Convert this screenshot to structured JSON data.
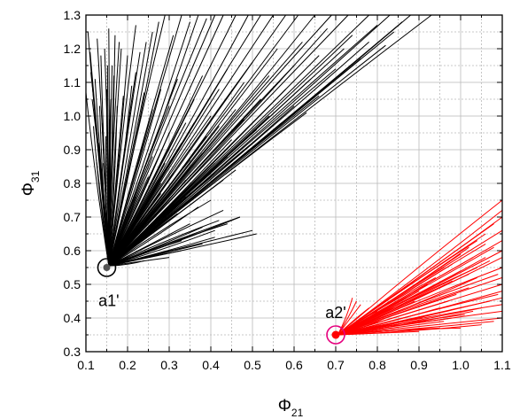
{
  "chart_data": {
    "type": "line",
    "xlabel_main": "Φ",
    "xlabel_sub": "21",
    "ylabel_main": "Φ",
    "ylabel_sub": "31",
    "xlim": [
      0.1,
      1.1
    ],
    "ylim": [
      0.3,
      1.3
    ],
    "x_ticks": [
      "0.1",
      "0.2",
      "0.3",
      "0.4",
      "0.5",
      "0.6",
      "0.7",
      "0.8",
      "0.9",
      "1.0",
      "1.1"
    ],
    "y_ticks": [
      "0.3",
      "0.4",
      "0.5",
      "0.6",
      "0.7",
      "0.8",
      "0.9",
      "1.0",
      "1.1",
      "1.2",
      "1.3"
    ],
    "minor_grid": true,
    "series": [
      {
        "color": "#000000",
        "origin": [
          0.155,
          0.555
        ],
        "marker": {
          "x": 0.15,
          "y": 0.55,
          "color": "#000000"
        },
        "label": "a1'",
        "label_pos": [
          0.155,
          0.435
        ],
        "endpoints": [
          [
            0.1,
            1.07
          ],
          [
            0.105,
            1.25
          ],
          [
            0.11,
            1.19
          ],
          [
            0.112,
            1.13
          ],
          [
            0.115,
            1.05
          ],
          [
            0.118,
            0.97
          ],
          [
            0.122,
            1.11
          ],
          [
            0.125,
            0.87
          ],
          [
            0.127,
            1.23
          ],
          [
            0.13,
            0.92
          ],
          [
            0.133,
            1.03
          ],
          [
            0.136,
            1.18
          ],
          [
            0.139,
            0.98
          ],
          [
            0.142,
            0.86
          ],
          [
            0.145,
            1.2
          ],
          [
            0.148,
            0.94
          ],
          [
            0.15,
            1.08
          ],
          [
            0.152,
            1.15
          ],
          [
            0.155,
            1.26
          ],
          [
            0.157,
            0.99
          ],
          [
            0.16,
            1.05
          ],
          [
            0.163,
            1.15
          ],
          [
            0.167,
            1.12
          ],
          [
            0.17,
            1.24
          ],
          [
            0.175,
            1.03
          ],
          [
            0.18,
            1.22
          ],
          [
            0.185,
            1.2
          ],
          [
            0.19,
            1.06
          ],
          [
            0.2,
            1.18
          ],
          [
            0.21,
            1.09
          ],
          [
            0.22,
            1.27
          ],
          [
            0.23,
            1.19
          ],
          [
            0.245,
            1.22
          ],
          [
            0.26,
            1.25
          ],
          [
            0.275,
            1.28
          ],
          [
            0.29,
            1.3
          ],
          [
            0.31,
            1.24
          ],
          [
            0.33,
            1.3
          ],
          [
            0.35,
            1.28
          ],
          [
            0.37,
            1.3
          ],
          [
            0.39,
            1.29
          ],
          [
            0.41,
            1.3
          ],
          [
            0.43,
            1.3
          ],
          [
            0.46,
            1.3
          ],
          [
            0.49,
            1.3
          ],
          [
            0.52,
            1.3
          ],
          [
            0.55,
            1.3
          ],
          [
            0.58,
            1.3
          ],
          [
            0.61,
            1.3
          ],
          [
            0.65,
            1.3
          ],
          [
            0.69,
            1.3
          ],
          [
            0.73,
            1.3
          ],
          [
            0.78,
            1.3
          ],
          [
            0.83,
            1.3
          ],
          [
            0.88,
            1.3
          ],
          [
            0.93,
            1.3
          ],
          [
            0.22,
            1.13
          ],
          [
            0.24,
            1.07
          ],
          [
            0.26,
            1.02
          ],
          [
            0.28,
            1.08
          ],
          [
            0.3,
            1.03
          ],
          [
            0.32,
            1.11
          ],
          [
            0.34,
            0.98
          ],
          [
            0.36,
            1.05
          ],
          [
            0.38,
            1.12
          ],
          [
            0.4,
            1.0
          ],
          [
            0.42,
            1.08
          ],
          [
            0.44,
            1.14
          ],
          [
            0.46,
            1.02
          ],
          [
            0.48,
            1.1
          ],
          [
            0.5,
            1.16
          ],
          [
            0.52,
            1.05
          ],
          [
            0.54,
            1.12
          ],
          [
            0.56,
            1.2
          ],
          [
            0.58,
            1.08
          ],
          [
            0.6,
            1.15
          ],
          [
            0.62,
            1.22
          ],
          [
            0.64,
            1.11
          ],
          [
            0.66,
            1.18
          ],
          [
            0.68,
            1.26
          ],
          [
            0.7,
            1.14
          ],
          [
            0.72,
            1.2
          ],
          [
            0.74,
            1.24
          ],
          [
            0.76,
            1.17
          ],
          [
            0.78,
            1.22
          ],
          [
            0.8,
            1.27
          ],
          [
            0.82,
            1.21
          ],
          [
            0.84,
            1.25
          ],
          [
            0.86,
            1.28
          ],
          [
            0.3,
            0.95
          ],
          [
            0.33,
            0.92
          ],
          [
            0.36,
            0.98
          ],
          [
            0.39,
            0.94
          ],
          [
            0.42,
            0.97
          ],
          [
            0.45,
            0.93
          ],
          [
            0.48,
            0.99
          ],
          [
            0.51,
            0.96
          ],
          [
            0.54,
            1.0
          ],
          [
            0.57,
            0.98
          ],
          [
            0.6,
            1.03
          ],
          [
            0.63,
            1.01
          ],
          [
            0.66,
            1.06
          ],
          [
            0.26,
            0.88
          ],
          [
            0.29,
            0.86
          ],
          [
            0.32,
            0.9
          ],
          [
            0.35,
            0.87
          ],
          [
            0.38,
            0.89
          ],
          [
            0.41,
            0.86
          ],
          [
            0.44,
            0.88
          ],
          [
            0.47,
            0.9
          ],
          [
            0.5,
            0.92
          ],
          [
            0.25,
            0.82
          ],
          [
            0.28,
            0.8
          ],
          [
            0.31,
            0.83
          ],
          [
            0.34,
            0.81
          ],
          [
            0.37,
            0.79
          ],
          [
            0.4,
            0.83
          ],
          [
            0.43,
            0.81
          ],
          [
            0.46,
            0.84
          ],
          [
            0.22,
            0.76
          ],
          [
            0.25,
            0.75
          ],
          [
            0.28,
            0.77
          ],
          [
            0.31,
            0.74
          ],
          [
            0.34,
            0.76
          ],
          [
            0.37,
            0.73
          ],
          [
            0.4,
            0.75
          ],
          [
            0.43,
            0.72
          ],
          [
            0.2,
            0.71
          ],
          [
            0.23,
            0.7
          ],
          [
            0.26,
            0.72
          ],
          [
            0.29,
            0.69
          ],
          [
            0.32,
            0.71
          ],
          [
            0.35,
            0.68
          ],
          [
            0.38,
            0.67
          ],
          [
            0.41,
            0.66
          ],
          [
            0.44,
            0.68
          ],
          [
            0.47,
            0.7
          ],
          [
            0.5,
            0.66
          ],
          [
            0.51,
            0.65
          ],
          [
            0.47,
            0.7
          ],
          [
            0.42,
            0.69
          ],
          [
            0.33,
            0.6
          ],
          [
            0.3,
            0.58
          ],
          [
            0.27,
            0.59
          ],
          [
            0.24,
            0.57
          ],
          [
            0.2,
            0.58
          ],
          [
            0.33,
            0.63
          ],
          [
            0.38,
            0.62
          ],
          [
            0.41,
            0.64
          ]
        ]
      },
      {
        "color": "#ff0000",
        "origin": [
          0.705,
          0.35
        ],
        "marker": {
          "x": 0.7,
          "y": 0.35,
          "color": "#e6007e"
        },
        "label": "a2'",
        "label_pos": [
          0.7,
          0.4
        ],
        "endpoints": [
          [
            0.84,
            0.43
          ],
          [
            0.86,
            0.44
          ],
          [
            0.88,
            0.47
          ],
          [
            0.9,
            0.48
          ],
          [
            0.92,
            0.5
          ],
          [
            0.94,
            0.52
          ],
          [
            0.96,
            0.55
          ],
          [
            0.98,
            0.56
          ],
          [
            1.0,
            0.59
          ],
          [
            1.02,
            0.61
          ],
          [
            1.04,
            0.63
          ],
          [
            1.06,
            0.65
          ],
          [
            1.08,
            0.68
          ],
          [
            1.1,
            0.7
          ],
          [
            1.1,
            0.72
          ],
          [
            1.1,
            0.75
          ],
          [
            1.1,
            0.66
          ],
          [
            1.1,
            0.63
          ],
          [
            1.1,
            0.6
          ],
          [
            1.1,
            0.58
          ],
          [
            1.1,
            0.55
          ],
          [
            1.1,
            0.52
          ],
          [
            1.1,
            0.5
          ],
          [
            1.1,
            0.48
          ],
          [
            1.1,
            0.46
          ],
          [
            1.1,
            0.44
          ],
          [
            1.1,
            0.42
          ],
          [
            1.1,
            0.4
          ],
          [
            1.08,
            0.39
          ],
          [
            1.05,
            0.38
          ],
          [
            1.0,
            0.37
          ],
          [
            0.95,
            0.37
          ],
          [
            0.9,
            0.36
          ],
          [
            1.07,
            0.57
          ],
          [
            1.04,
            0.52
          ],
          [
            1.02,
            0.49
          ],
          [
            0.99,
            0.47
          ],
          [
            0.97,
            0.45
          ],
          [
            0.95,
            0.43
          ],
          [
            0.93,
            0.41
          ],
          [
            0.91,
            0.4
          ],
          [
            1.06,
            0.62
          ],
          [
            1.03,
            0.58
          ],
          [
            1.0,
            0.54
          ],
          [
            0.98,
            0.51
          ],
          [
            1.09,
            0.53
          ],
          [
            1.09,
            0.47
          ],
          [
            1.07,
            0.45
          ],
          [
            1.05,
            0.43
          ],
          [
            1.03,
            0.42
          ],
          [
            1.01,
            0.41
          ],
          [
            0.98,
            0.4
          ],
          [
            0.96,
            0.39
          ],
          [
            1.08,
            0.61
          ],
          [
            1.06,
            0.58
          ],
          [
            1.04,
            0.55
          ],
          [
            1.02,
            0.53
          ],
          [
            0.87,
            0.46
          ],
          [
            0.89,
            0.45
          ],
          [
            0.82,
            0.4
          ],
          [
            0.8,
            0.42
          ],
          [
            0.78,
            0.43
          ],
          [
            0.76,
            0.44
          ],
          [
            0.75,
            0.45
          ],
          [
            0.74,
            0.46
          ],
          [
            0.85,
            0.38
          ]
        ]
      }
    ]
  }
}
